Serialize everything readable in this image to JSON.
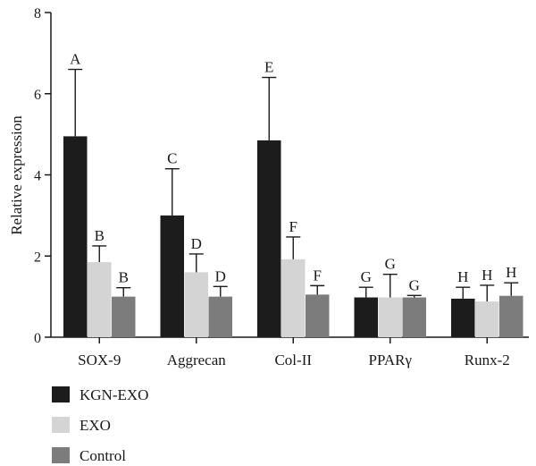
{
  "chart_data": {
    "type": "bar",
    "ylabel": "Relative expression",
    "xlabel": "",
    "title": "",
    "ylim": [
      0,
      8
    ],
    "yticks": [
      0,
      2,
      4,
      6,
      8
    ],
    "categories": [
      "SOX-9",
      "Aggrecan",
      "Col-II",
      "PPARγ",
      "Runx-2"
    ],
    "series": [
      {
        "name": "KGN-EXO",
        "color": "#1c1c1c",
        "values": [
          4.95,
          3.0,
          4.85,
          0.98,
          0.95
        ],
        "errors": [
          1.65,
          1.15,
          1.55,
          0.25,
          0.28
        ],
        "labels": [
          "A",
          "C",
          "E",
          "G",
          "H"
        ]
      },
      {
        "name": "EXO",
        "color": "#d4d4d4",
        "values": [
          1.85,
          1.6,
          1.92,
          0.98,
          0.88
        ],
        "errors": [
          0.4,
          0.45,
          0.55,
          0.57,
          0.4
        ],
        "labels": [
          "B",
          "D",
          "F",
          "G",
          "H"
        ]
      },
      {
        "name": "Control",
        "color": "#7c7c7c",
        "values": [
          1.0,
          1.0,
          1.05,
          0.98,
          1.02
        ],
        "errors": [
          0.22,
          0.25,
          0.22,
          0.05,
          0.32
        ],
        "labels": [
          "B",
          "D",
          "F",
          "G",
          "H"
        ]
      }
    ],
    "legend_position": "bottom-left"
  }
}
